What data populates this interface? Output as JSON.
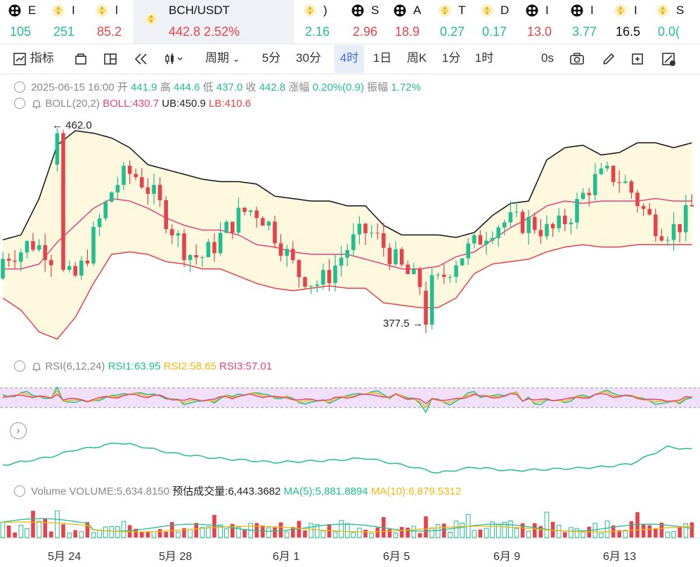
{
  "tickers": [
    {
      "name": "E",
      "price": "105",
      "icon": "circle-icon",
      "color": "#1fbf8f"
    },
    {
      "name": "I",
      "price": "251",
      "icon": "bnb-icon",
      "color": "#1fbf8f"
    },
    {
      "name": "l",
      "price": "85.2",
      "icon": "bnb-icon",
      "color": "#e8414a"
    },
    {
      "name": "BCH/USDT",
      "price": "442.8",
      "change": "2.52%",
      "icon": "bnb-icon",
      "color": "#e8414a"
    },
    {
      "name": ")",
      "price": "2.16",
      "icon": "bnb-icon",
      "color": "#1fbf8f"
    },
    {
      "name": "S",
      "price": "2.96",
      "icon": "circle-icon",
      "color": "#e8414a"
    },
    {
      "name": "A",
      "price": "18.9",
      "icon": "circle-icon",
      "color": "#e8414a"
    },
    {
      "name": "T",
      "price": "0.27",
      "icon": "bnb-icon",
      "color": "#1fbf8f"
    },
    {
      "name": "D",
      "price": "0.17",
      "icon": "bnb-icon",
      "color": "#1fbf8f"
    },
    {
      "name": "I",
      "price": "13.0",
      "icon": "circle-icon",
      "color": "#e8414a"
    },
    {
      "name": "I",
      "price": "3.77",
      "icon": "circle-icon",
      "color": "#1fbf8f"
    },
    {
      "name": "I",
      "price": "16.5",
      "icon": "bnb-icon",
      "color": "#111111"
    },
    {
      "name": "S",
      "price": "0.0(",
      "icon": "bnb-icon",
      "color": "#1fbf8f"
    }
  ],
  "toolbar": {
    "indicators": "指标",
    "period": "周期",
    "intervals": [
      "5分",
      "30分",
      "4时",
      "1日",
      "周K",
      "1分",
      "1时"
    ],
    "active_interval": "4时",
    "countdown": "0s"
  },
  "ohlc": {
    "date": "2025-06-15 16:00",
    "open_label": "开",
    "open": "441.9",
    "high_label": "高",
    "high": "444.6",
    "low_label": "低",
    "low": "437.0",
    "close_label": "收",
    "close": "442.8",
    "change_label": "涨幅",
    "change": "0.20%(0.9)",
    "amp_label": "振幅",
    "amp": "1.72%"
  },
  "boll": {
    "name": "BOLL(20,2)",
    "boll": "BOLL:430.7",
    "ub": "UB:450.9",
    "lb": "LB:410.6"
  },
  "annotations": {
    "high": "← 462.0",
    "low": "377.5 →"
  },
  "rsi": {
    "name": "RSI(6,12,24)",
    "rsi1": "RSI1:63.95",
    "rsi2": "RSI2:58.65",
    "rsi3": "RSI3:57.01"
  },
  "volume": {
    "name": "Volume",
    "value": "VOLUME:5,634.8150",
    "est": "预估成交量:6,443.3682",
    "ma5": "MA(5):5,881.8894",
    "ma10": "MA(10):6,879.5312"
  },
  "xaxis": [
    "5月 24",
    "5月 28",
    "6月 1",
    "6月 5",
    "6月 9",
    "6月 13"
  ],
  "colors": {
    "up": "#1fbf8f",
    "down": "#e8414a",
    "boll_mid": "#e0457b",
    "ub": "#111111",
    "lb": "#e8414a",
    "band": "#fdf8de",
    "rsi1": "#1fbf8f",
    "rsi2": "#f0b90b",
    "rsi3": "#e0457b",
    "rsi_zone": "#f0e0fa"
  },
  "chart_data": {
    "type": "candlestick",
    "symbol": "BCH/USDT",
    "interval": "4h",
    "y_range": [
      370,
      470
    ],
    "price_extremes": {
      "high": 462.0,
      "low": 377.5
    },
    "upper_band": [
      [
        0,
        416
      ],
      [
        3,
        418
      ],
      [
        6,
        433
      ],
      [
        9,
        455
      ],
      [
        12,
        461
      ],
      [
        15,
        460
      ],
      [
        18,
        458
      ],
      [
        21,
        454
      ],
      [
        24,
        447
      ],
      [
        27,
        445
      ],
      [
        30,
        443
      ],
      [
        33,
        441
      ],
      [
        36,
        440
      ],
      [
        39,
        440
      ],
      [
        42,
        439
      ],
      [
        45,
        434
      ],
      [
        48,
        433
      ],
      [
        51,
        432
      ],
      [
        54,
        432
      ],
      [
        57,
        430
      ],
      [
        60,
        430
      ],
      [
        63,
        422
      ],
      [
        66,
        418
      ],
      [
        69,
        418
      ],
      [
        72,
        418
      ],
      [
        75,
        417
      ],
      [
        78,
        419
      ],
      [
        81,
        426
      ],
      [
        84,
        431
      ],
      [
        87,
        432
      ],
      [
        90,
        449
      ],
      [
        93,
        454
      ],
      [
        96,
        455
      ],
      [
        99,
        451
      ],
      [
        102,
        452
      ],
      [
        105,
        456
      ],
      [
        108,
        456
      ],
      [
        111,
        454
      ],
      [
        114,
        456
      ]
    ],
    "lower_band": [
      [
        0,
        392
      ],
      [
        3,
        387
      ],
      [
        6,
        378
      ],
      [
        9,
        375
      ],
      [
        12,
        384
      ],
      [
        15,
        398
      ],
      [
        18,
        410
      ],
      [
        21,
        411
      ],
      [
        24,
        410
      ],
      [
        27,
        407
      ],
      [
        30,
        406
      ],
      [
        33,
        404
      ],
      [
        36,
        404
      ],
      [
        39,
        401
      ],
      [
        42,
        398
      ],
      [
        45,
        396
      ],
      [
        48,
        395
      ],
      [
        51,
        396
      ],
      [
        54,
        397
      ],
      [
        57,
        396
      ],
      [
        60,
        396
      ],
      [
        63,
        390
      ],
      [
        66,
        389
      ],
      [
        69,
        388
      ],
      [
        72,
        388
      ],
      [
        75,
        392
      ],
      [
        78,
        402
      ],
      [
        81,
        406
      ],
      [
        84,
        407
      ],
      [
        87,
        408
      ],
      [
        90,
        411
      ],
      [
        93,
        413
      ],
      [
        96,
        414
      ],
      [
        99,
        413
      ],
      [
        102,
        413
      ],
      [
        105,
        414
      ],
      [
        108,
        414
      ],
      [
        111,
        414
      ],
      [
        114,
        414
      ]
    ],
    "middle_band": [
      [
        0,
        404
      ],
      [
        3,
        404
      ],
      [
        6,
        406
      ],
      [
        9,
        415
      ],
      [
        12,
        422
      ],
      [
        15,
        429
      ],
      [
        18,
        433
      ],
      [
        21,
        432
      ],
      [
        24,
        429
      ],
      [
        27,
        425
      ],
      [
        30,
        422
      ],
      [
        33,
        420
      ],
      [
        36,
        420
      ],
      [
        39,
        418
      ],
      [
        42,
        414
      ],
      [
        45,
        413
      ],
      [
        48,
        411
      ],
      [
        51,
        410
      ],
      [
        54,
        410
      ],
      [
        57,
        410
      ],
      [
        60,
        408
      ],
      [
        63,
        406
      ],
      [
        66,
        404
      ],
      [
        69,
        404
      ],
      [
        72,
        405
      ],
      [
        75,
        409
      ],
      [
        78,
        411
      ],
      [
        81,
        416
      ],
      [
        84,
        421
      ],
      [
        87,
        425
      ],
      [
        90,
        430
      ],
      [
        93,
        432
      ],
      [
        96,
        431
      ],
      [
        99,
        432
      ],
      [
        102,
        432
      ],
      [
        105,
        432
      ],
      [
        108,
        433
      ],
      [
        111,
        432
      ],
      [
        114,
        432
      ]
    ],
    "close_last": 442.8
  }
}
